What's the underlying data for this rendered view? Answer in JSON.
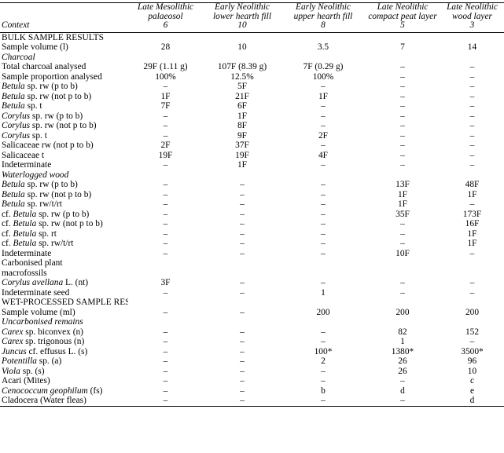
{
  "header": {
    "context_label": "Context",
    "columns": [
      {
        "line1": "Late Mesolithic",
        "line2": "palaeosol",
        "num": "6"
      },
      {
        "line1": "Early Neolithic",
        "line2": "lower hearth fill",
        "num": "10"
      },
      {
        "line1": "Early Neolithic",
        "line2": "upper hearth fill",
        "num": "8"
      },
      {
        "line1": "Late Neolithic",
        "line2": "compact peat layer",
        "num": "5"
      },
      {
        "line1": "Late Neolithic",
        "line2": "wood layer",
        "num": "3"
      }
    ]
  },
  "rows": [
    {
      "type": "section",
      "label": "BULK SAMPLE RESULTS",
      "values": [
        "",
        "",
        "",
        "",
        ""
      ]
    },
    {
      "type": "data",
      "pre": "Sample volume (l)",
      "taxon": "",
      "post": "",
      "values": [
        "28",
        "10",
        "3.5",
        "7",
        "14"
      ]
    },
    {
      "type": "sub",
      "label": "Charcoal",
      "values": [
        "",
        "",
        "",
        "",
        ""
      ]
    },
    {
      "type": "data",
      "pre": "Total charcoal analysed",
      "taxon": "",
      "post": "",
      "values": [
        "29F (1.11 g)",
        "107F (8.39 g)",
        "7F (0.29 g)",
        "–",
        "–"
      ]
    },
    {
      "type": "data",
      "pre": "Sample proportion analysed",
      "taxon": "",
      "post": "",
      "values": [
        "100%",
        "12.5%",
        "100%",
        "–",
        "–"
      ]
    },
    {
      "type": "data",
      "pre": "",
      "taxon": "Betula",
      "post": " sp. rw (p to b)",
      "values": [
        "–",
        "5F",
        "–",
        "–",
        "–"
      ]
    },
    {
      "type": "data",
      "pre": "",
      "taxon": "Betula",
      "post": " sp. rw (not p to b)",
      "values": [
        "1F",
        "21F",
        "1F",
        "–",
        "–"
      ]
    },
    {
      "type": "data",
      "pre": "",
      "taxon": "Betula",
      "post": " sp. t",
      "values": [
        "7F",
        "6F",
        "–",
        "–",
        "–"
      ]
    },
    {
      "type": "data",
      "pre": "",
      "taxon": "Corylus",
      "post": " sp. rw (p to b)",
      "values": [
        "–",
        "1F",
        "–",
        "–",
        "–"
      ]
    },
    {
      "type": "data",
      "pre": "",
      "taxon": "Corylus",
      "post": " sp. rw (not p to b)",
      "values": [
        "–",
        "8F",
        "–",
        "–",
        "–"
      ]
    },
    {
      "type": "data",
      "pre": "",
      "taxon": "Corylus",
      "post": " sp. t",
      "values": [
        "–",
        "9F",
        "2F",
        "–",
        "–"
      ]
    },
    {
      "type": "data",
      "pre": "Salicaceae rw (not p to b)",
      "taxon": "",
      "post": "",
      "values": [
        "2F",
        "37F",
        "–",
        "–",
        "–"
      ]
    },
    {
      "type": "data",
      "pre": "Salicaceae t",
      "taxon": "",
      "post": "",
      "values": [
        "19F",
        "19F",
        "4F",
        "–",
        "–"
      ]
    },
    {
      "type": "data",
      "pre": "Indeterminate",
      "taxon": "",
      "post": "",
      "values": [
        "–",
        "1F",
        "–",
        "–",
        "–"
      ]
    },
    {
      "type": "sub",
      "label": "Waterlogged wood",
      "values": [
        "",
        "",
        "",
        "",
        ""
      ]
    },
    {
      "type": "data",
      "pre": "",
      "taxon": "Betula",
      "post": " sp. rw (p to b)",
      "values": [
        "–",
        "–",
        "–",
        "13F",
        "48F"
      ]
    },
    {
      "type": "data",
      "pre": "",
      "taxon": "Betula",
      "post": " sp. rw (not p to b)",
      "values": [
        "–",
        "–",
        "–",
        "1F",
        "1F"
      ]
    },
    {
      "type": "data",
      "pre": "",
      "taxon": "Betula",
      "post": " sp. rw/t/rt",
      "values": [
        "–",
        "–",
        "–",
        "1F",
        "–"
      ]
    },
    {
      "type": "data",
      "pre": "cf. ",
      "taxon": "Betula",
      "post": " sp. rw (p to b)",
      "values": [
        "–",
        "–",
        "–",
        "35F",
        "173F"
      ]
    },
    {
      "type": "data",
      "pre": "cf. ",
      "taxon": "Betula",
      "post": " sp. rw (not p to b)",
      "values": [
        "–",
        "–",
        "–",
        "–",
        "16F"
      ]
    },
    {
      "type": "data",
      "pre": "cf. ",
      "taxon": "Betula",
      "post": " sp. rt",
      "values": [
        "–",
        "–",
        "–",
        "–",
        "1F"
      ]
    },
    {
      "type": "data",
      "pre": "cf. ",
      "taxon": "Betula",
      "post": " sp. rw/t/rt",
      "values": [
        "–",
        "–",
        "–",
        "–",
        "1F"
      ]
    },
    {
      "type": "data",
      "pre": "Indeterminate",
      "taxon": "",
      "post": "",
      "values": [
        "–",
        "–",
        "–",
        "10F",
        "–"
      ]
    },
    {
      "type": "section",
      "label": "Carbonised plant",
      "values": [
        "",
        "",
        "",
        "",
        ""
      ]
    },
    {
      "type": "indent",
      "label": "macrofossils",
      "values": [
        "",
        "",
        "",
        "",
        ""
      ]
    },
    {
      "type": "data",
      "pre": "",
      "taxon": "Corylus avellana",
      "post": " L. (nt)",
      "values": [
        "3F",
        "–",
        "–",
        "–",
        "–"
      ]
    },
    {
      "type": "data",
      "pre": "Indeterminate seed",
      "taxon": "",
      "post": "",
      "values": [
        "–",
        "–",
        "1",
        "–",
        "–"
      ]
    },
    {
      "type": "section",
      "label": "WET-PROCESSED SAMPLE RESULTS",
      "values": [
        "",
        "",
        "",
        "",
        ""
      ]
    },
    {
      "type": "data",
      "pre": "Sample volume (ml)",
      "taxon": "",
      "post": "",
      "values": [
        "–",
        "–",
        "200",
        "200",
        "200"
      ]
    },
    {
      "type": "sub",
      "label": "Uncarbonised remains",
      "values": [
        "",
        "",
        "",
        "",
        ""
      ]
    },
    {
      "type": "data",
      "pre": "",
      "taxon": "Carex",
      "post": " sp. biconvex (n)",
      "values": [
        "–",
        "–",
        "–",
        "82",
        "152"
      ]
    },
    {
      "type": "data",
      "pre": "",
      "taxon": "Carex",
      "post": " sp. trigonous (n)",
      "values": [
        "–",
        "–",
        "–",
        "1",
        "–"
      ]
    },
    {
      "type": "data",
      "pre": "",
      "taxon": "Juncus",
      "post": " cf. effusus L. (s)",
      "values": [
        "–",
        "–",
        "100*",
        "1380*",
        "3500*"
      ]
    },
    {
      "type": "data",
      "pre": "",
      "taxon": "Potentilla",
      "post": " sp. (a)",
      "values": [
        "–",
        "–",
        "2",
        "26",
        "96"
      ]
    },
    {
      "type": "data",
      "pre": "",
      "taxon": "Viola",
      "post": " sp. (s)",
      "values": [
        "–",
        "–",
        "–",
        "26",
        "10"
      ]
    },
    {
      "type": "data",
      "pre": "Acari (Mites)",
      "taxon": "",
      "post": "",
      "values": [
        "–",
        "–",
        "–",
        "–",
        "c"
      ]
    },
    {
      "type": "data",
      "pre": "",
      "taxon": "Cenococcum geophilum",
      "post": " (fs)",
      "values": [
        "–",
        "–",
        "b",
        "d",
        "e"
      ]
    },
    {
      "type": "data",
      "pre": "Cladocera (Water fleas)",
      "taxon": "",
      "post": "",
      "values": [
        "–",
        "–",
        "–",
        "–",
        "d"
      ]
    }
  ]
}
